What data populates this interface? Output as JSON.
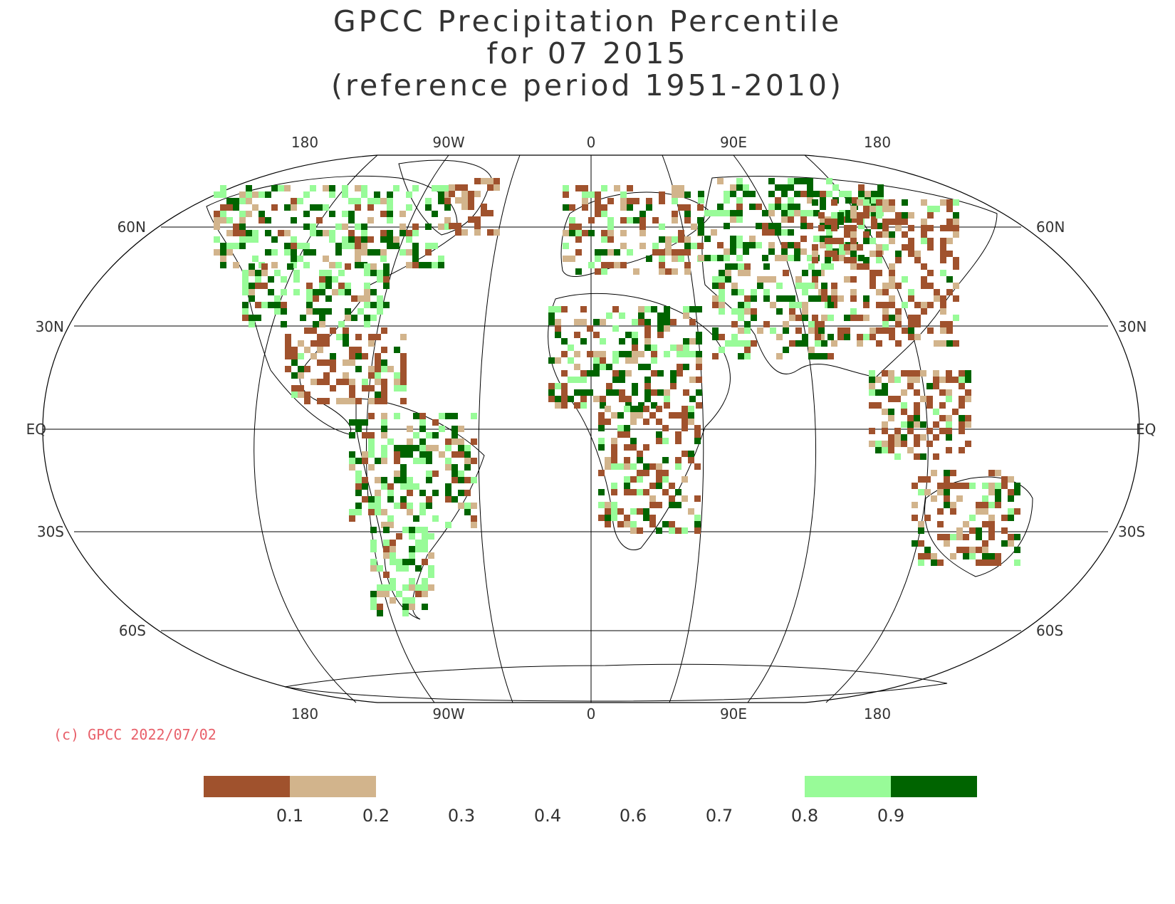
{
  "title": {
    "line1": "GPCC Precipitation Percentile",
    "line2": "for 07 2015",
    "line3": "(reference period 1951-2010)"
  },
  "map": {
    "projection": "Robinson",
    "top_lon_labels": [
      "180",
      "90W",
      "0",
      "90E",
      "180"
    ],
    "bottom_lon_labels": [
      "180",
      "90W",
      "0",
      "90E",
      "180"
    ],
    "left_lat_labels": [
      "60N",
      "30N",
      "EQ",
      "30S",
      "60S"
    ],
    "right_lat_labels": [
      "60N",
      "30N",
      "EQ",
      "30S",
      "60S"
    ]
  },
  "copyright": "(c) GPCC 2022/07/02",
  "legend": {
    "colors": {
      "very_dry": "#a0522d",
      "dry": "#d2b48c",
      "wet": "#98fb98",
      "very_wet": "#006400"
    },
    "ticks": [
      "0.1",
      "0.2",
      "0.3",
      "0.4",
      "0.6",
      "0.7",
      "0.8",
      "0.9"
    ]
  }
}
